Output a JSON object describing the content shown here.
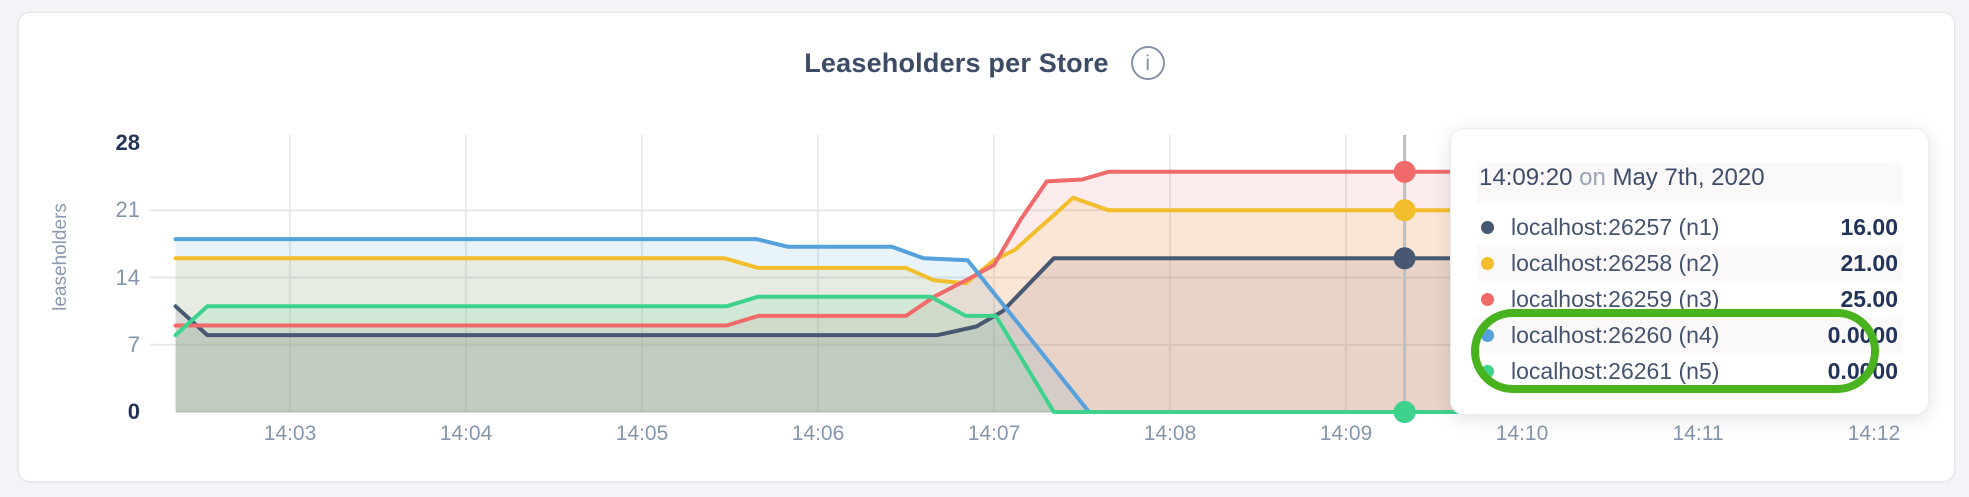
{
  "card": {
    "title": "Leaseholders per Store"
  },
  "chart_data": {
    "type": "area",
    "title": "Leaseholders per Store",
    "ylabel": "leaseholders",
    "xlabel": "",
    "ylim": [
      0,
      28
    ],
    "yticks": [
      0,
      7,
      14,
      21,
      28
    ],
    "ytick_emphasized": [
      0,
      28
    ],
    "grid": true,
    "x_axis_unit": "time of day (hh:mm)",
    "x_range_minutes_after_1400": [
      2.35,
      12.15
    ],
    "xticks": [
      {
        "t": 3,
        "label": "14:03"
      },
      {
        "t": 4,
        "label": "14:04"
      },
      {
        "t": 5,
        "label": "14:05"
      },
      {
        "t": 6,
        "label": "14:06"
      },
      {
        "t": 7,
        "label": "14:07"
      },
      {
        "t": 8,
        "label": "14:08"
      },
      {
        "t": 9,
        "label": "14:09"
      },
      {
        "t": 10,
        "label": "14:10"
      },
      {
        "t": 11,
        "label": "14:11"
      },
      {
        "t": 12,
        "label": "14:12"
      }
    ],
    "series": [
      {
        "name": "localhost:26257 (n1)",
        "color": "#475872",
        "points": [
          [
            2.35,
            11
          ],
          [
            2.53,
            8
          ],
          [
            6.68,
            8
          ],
          [
            6.9,
            8.9
          ],
          [
            7.05,
            10.5
          ],
          [
            7.34,
            16
          ],
          [
            12.15,
            16
          ]
        ]
      },
      {
        "name": "localhost:26258 (n2)",
        "color": "#F2BE2C",
        "points": [
          [
            2.35,
            16
          ],
          [
            5.47,
            16
          ],
          [
            5.66,
            15
          ],
          [
            6.5,
            15
          ],
          [
            6.66,
            13.7
          ],
          [
            6.84,
            13.4
          ],
          [
            7.0,
            15.8
          ],
          [
            7.12,
            16.9
          ],
          [
            7.45,
            22.3
          ],
          [
            7.65,
            21
          ],
          [
            12.15,
            21
          ]
        ]
      },
      {
        "name": "localhost:26259 (n3)",
        "color": "#F0696B",
        "points": [
          [
            2.35,
            9
          ],
          [
            5.48,
            9
          ],
          [
            5.66,
            10
          ],
          [
            6.5,
            10
          ],
          [
            6.66,
            12
          ],
          [
            6.84,
            13.7
          ],
          [
            7.0,
            15.3
          ],
          [
            7.15,
            20
          ],
          [
            7.3,
            24
          ],
          [
            7.5,
            24.2
          ],
          [
            7.65,
            25
          ],
          [
            12.15,
            25
          ]
        ]
      },
      {
        "name": "localhost:26260 (n4)",
        "color": "#55A1DC",
        "points": [
          [
            2.35,
            18
          ],
          [
            5.65,
            18
          ],
          [
            5.83,
            17.2
          ],
          [
            6.42,
            17.2
          ],
          [
            6.6,
            16
          ],
          [
            6.85,
            15.8
          ],
          [
            7.54,
            0
          ],
          [
            12.15,
            0
          ]
        ]
      },
      {
        "name": "localhost:26261 (n5)",
        "color": "#3ED38C",
        "points": [
          [
            2.35,
            8
          ],
          [
            2.53,
            11
          ],
          [
            5.48,
            11
          ],
          [
            5.66,
            12
          ],
          [
            6.64,
            12
          ],
          [
            6.84,
            10
          ],
          [
            7.01,
            10
          ],
          [
            7.34,
            0
          ],
          [
            12.15,
            0
          ]
        ]
      }
    ],
    "hover": {
      "time": "14:09:20",
      "t": 9.333,
      "values": [
        16,
        21,
        25,
        0,
        0
      ]
    }
  },
  "tooltip": {
    "time": "14:09:20",
    "on": "on",
    "date": "May 7th, 2020",
    "rows": [
      {
        "label": "localhost:26257 (n1)",
        "value": "16.00",
        "color": "#475872",
        "highlighted": false
      },
      {
        "label": "localhost:26258 (n2)",
        "value": "21.00",
        "color": "#F2BE2C",
        "highlighted": false
      },
      {
        "label": "localhost:26259 (n3)",
        "value": "25.00",
        "color": "#F0696B",
        "highlighted": false
      },
      {
        "label": "localhost:26260 (n4)",
        "value": "0.0000",
        "color": "#55A1DC",
        "highlighted": true
      },
      {
        "label": "localhost:26261 (n5)",
        "value": "0.0000",
        "color": "#3ED38C",
        "highlighted": true
      }
    ],
    "annotation_color": "#49B21F"
  }
}
